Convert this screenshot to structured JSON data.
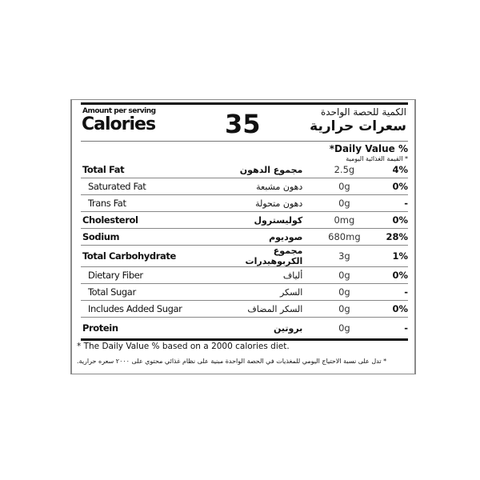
{
  "header": {
    "amount_per_serving": "Amount per serving",
    "calories_label": "Calories",
    "calories_value": "35",
    "arabic_amount_per_serving": "الكمية للحصة الواحدة",
    "arabic_calories": "سعرات حرارية"
  },
  "daily_value": {
    "label": "*Daily Value %",
    "arabic": "* القيمة الغذائية اليومية"
  },
  "rows": [
    {
      "en": "Total Fat",
      "ar": "مجموع الدهون",
      "amount": "2.5g",
      "pct": "4%",
      "bold": true
    },
    {
      "en": "Saturated Fat",
      "ar": "دهون مشبعة",
      "amount": "0g",
      "pct": "0%",
      "bold": false
    },
    {
      "en": "Trans Fat",
      "ar": "دهون متحولة",
      "amount": "0g",
      "pct": "-",
      "bold": false
    },
    {
      "en": "Cholesterol",
      "ar": "كوليسترول",
      "amount": "0mg",
      "pct": "0%",
      "bold": true
    },
    {
      "en": "Sodium",
      "ar": "صوديوم",
      "amount": "680mg",
      "pct": "28%",
      "bold": true
    },
    {
      "en": "Total Carbohydrate",
      "ar": "مجموع الكربوهيدرات",
      "amount": "3g",
      "pct": "1%",
      "bold": true
    },
    {
      "en": "Dietary Fiber",
      "ar": "ألياف",
      "amount": "0g",
      "pct": "0%",
      "bold": false
    },
    {
      "en": "Total Sugar",
      "ar": "السكر",
      "amount": "0g",
      "pct": "-",
      "bold": false
    },
    {
      "en": "Includes Added Sugar",
      "ar": "السكر المضاف",
      "amount": "0g",
      "pct": "0%",
      "bold": false
    },
    {
      "en": "Protein",
      "ar": "بروتين",
      "amount": "0g",
      "pct": "-",
      "bold": true
    }
  ],
  "footer": {
    "en": "* The Daily Value % based on a 2000 calories diet.",
    "ar": "* تدل على نسبة الاحتياج اليومي للمغذيات في الحصة الواحدة مبنية على نظام غذائي محتوي على ٢٠٠٠ سعره حرارية."
  }
}
